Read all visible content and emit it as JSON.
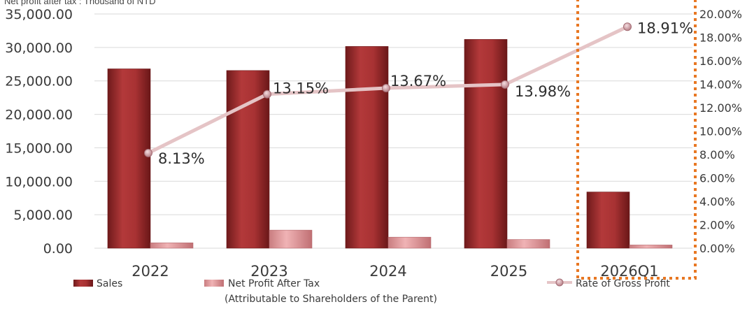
{
  "unit_note": "Net profit after tax : Thousand of NTD",
  "chart_data": {
    "type": "bar",
    "categories": [
      "2022",
      "2023",
      "2024",
      "2025",
      "2026Q1"
    ],
    "series": [
      {
        "name": "Sales",
        "type": "bar",
        "axis": "left",
        "values": [
          26800,
          26550,
          30150,
          31200,
          8400
        ]
      },
      {
        "name": "Net Profit After Tax",
        "name_line2": "(Attributable to Shareholders of the Parent)",
        "type": "bar",
        "axis": "left",
        "values": [
          800,
          2700,
          1650,
          1300,
          480
        ]
      },
      {
        "name": "Rate of Gross Profit",
        "type": "line",
        "axis": "right",
        "values": [
          8.13,
          13.15,
          13.67,
          13.98,
          18.91
        ],
        "labels": [
          "8.13%",
          "13.15%",
          "13.67%",
          "13.98%",
          "18.91%"
        ]
      }
    ],
    "y_left": {
      "ylim": [
        0,
        35000
      ],
      "ticks": [
        "0.00",
        "5,000.00",
        "10,000.00",
        "15,000.00",
        "20,000.00",
        "25,000.00",
        "30,000.00",
        "35,000.00"
      ]
    },
    "y_right": {
      "ylim": [
        0,
        20
      ],
      "ticks": [
        "0.00%",
        "2.00%",
        "4.00%",
        "6.00%",
        "8.00%",
        "10.00%",
        "12.00%",
        "14.00%",
        "16.00%",
        "18.00%",
        "20.00%"
      ]
    },
    "grid": true,
    "legend": "bottom",
    "highlight": "2026Q1",
    "colors": {
      "sales": "#9e2a2b",
      "net_profit": "#e8a1a3",
      "line": "#e5c4c6",
      "marker": "#c58f96",
      "highlight": "#e87722",
      "grid": "#d9d9d9"
    }
  }
}
